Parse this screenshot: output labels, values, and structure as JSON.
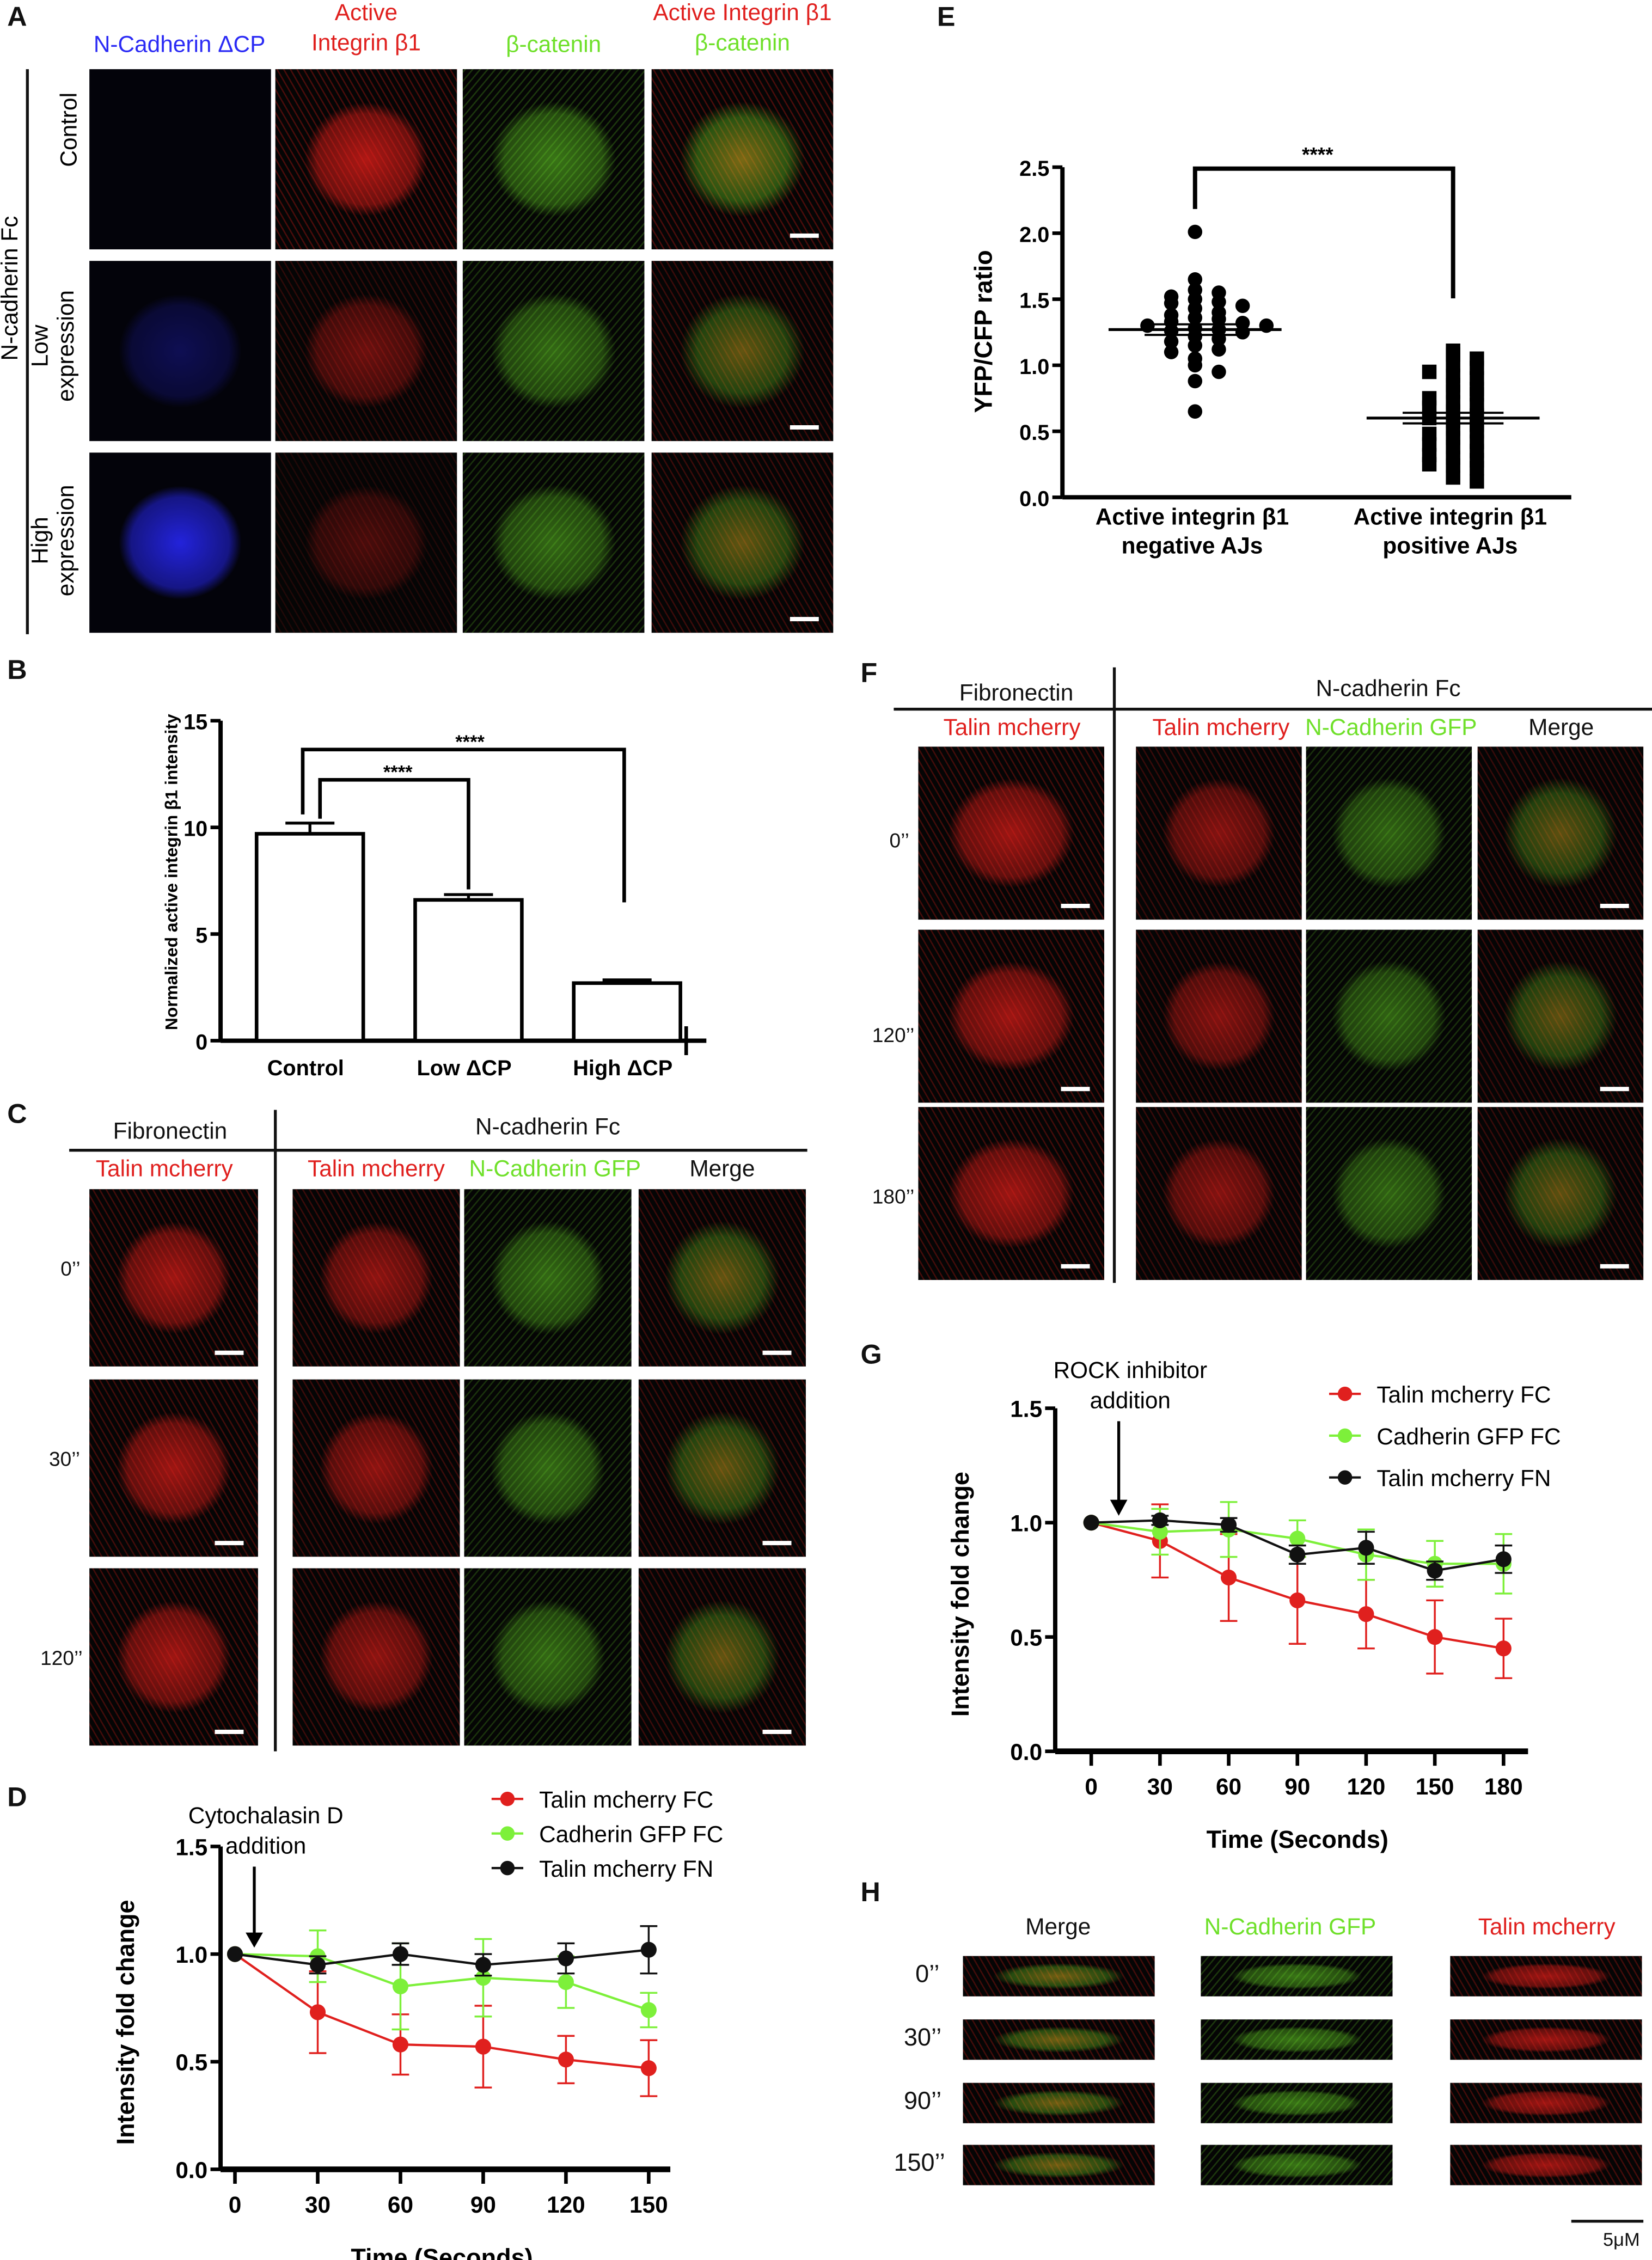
{
  "panel_labels": {
    "a": "A",
    "b": "B",
    "c": "C",
    "d": "D",
    "e": "E",
    "f": "F",
    "g": "G",
    "h": "H"
  },
  "panel_a": {
    "col_headers": [
      {
        "l1": "N-Cadherin ΔCP",
        "l2": "",
        "color": "#2b2bf5"
      },
      {
        "l1": "Active",
        "l2": "Integrin β1",
        "color": "#e0201e"
      },
      {
        "l1": "β-catenin",
        "l2": "",
        "color": "#6fe02a"
      },
      {
        "l1": "Active Integrin β1",
        "l2": "β-catenin"
      }
    ],
    "group_label": "N-cadherin Fc",
    "row_labels": [
      {
        "l1": "Control",
        "l2": ""
      },
      {
        "l1": "Low",
        "l2": "expression"
      },
      {
        "l1": "High",
        "l2": "expression"
      }
    ]
  },
  "panel_c": {
    "fn_header": "Fibronectin",
    "fc_header": "N-cadherin Fc",
    "sub_headers": {
      "fn": "Talin mcherry",
      "talin": "Talin mcherry",
      "cad": "N-Cadherin GFP",
      "merge": "Merge"
    },
    "times": [
      "0’’",
      "30’’",
      "120’’"
    ]
  },
  "panel_f": {
    "fn_header": "Fibronectin",
    "fc_header": "N-cadherin Fc",
    "sub_headers": {
      "fn": "Talin mcherry",
      "talin": "Talin mcherry",
      "cad": "N-Cadherin GFP",
      "merge": "Merge"
    },
    "times": [
      "0’’",
      "120’’",
      "180’’"
    ]
  },
  "panel_h": {
    "headers": {
      "merge": "Merge",
      "cad": "N-Cadherin GFP",
      "talin": "Talin mcherry"
    },
    "times": [
      "0’’",
      "30’’",
      "90’’",
      "150’’"
    ],
    "scale_bar": "5μM"
  },
  "colors": {
    "red": "#e0201e",
    "green": "#7df03a",
    "black": "#111111",
    "blue": "#2b2bf5"
  },
  "chart_data": [
    {
      "id": "B",
      "type": "bar",
      "ylabel": "Normalized active integrin β1 intensity",
      "ylim": [
        0,
        15
      ],
      "yticks": [
        "0",
        "5",
        "10",
        "15"
      ],
      "categories": [
        "Control",
        "Low ΔCP",
        "High ΔCP"
      ],
      "values": [
        9.7,
        6.6,
        2.7
      ],
      "errors": [
        0.5,
        0.25,
        0.15
      ],
      "significance": [
        {
          "from": "Control",
          "to": "Low ΔCP",
          "label": "****"
        },
        {
          "from": "Control",
          "to": "High ΔCP",
          "label": "****"
        }
      ]
    },
    {
      "id": "D",
      "type": "line",
      "xlabel": "Time (Seconds)",
      "ylabel": "Intensity fold change",
      "xlim": [
        0,
        150
      ],
      "ylim": [
        0,
        1.5
      ],
      "x": [
        0,
        30,
        60,
        90,
        120,
        150
      ],
      "xticks": [
        "0",
        "30",
        "60",
        "90",
        "120",
        "150"
      ],
      "yticks": [
        "0.0",
        "0.5",
        "1.0",
        "1.5"
      ],
      "annotation": {
        "l1": "Cytochalasin D",
        "l2": "addition",
        "x": 7
      },
      "legend": "top-right",
      "series": [
        {
          "name": "Talin mcherry FC",
          "color": "#e0201e",
          "values": [
            1,
            0.73,
            0.58,
            0.57,
            0.51,
            0.47
          ],
          "errors": [
            0,
            0.19,
            0.14,
            0.19,
            0.11,
            0.13
          ]
        },
        {
          "name": "Cadherin GFP FC",
          "color": "#7df03a",
          "values": [
            1,
            0.99,
            0.85,
            0.89,
            0.87,
            0.74
          ],
          "errors": [
            0,
            0.12,
            0.2,
            0.18,
            0.12,
            0.08
          ]
        },
        {
          "name": "Talin mcherry FN",
          "color": "#111111",
          "values": [
            1,
            0.95,
            1.0,
            0.95,
            0.98,
            1.02
          ],
          "errors": [
            0,
            0.04,
            0.05,
            0.05,
            0.07,
            0.11
          ]
        }
      ]
    },
    {
      "id": "E",
      "type": "scatter",
      "ylabel": "YFP/CFP ratio",
      "ylim": [
        0,
        2.5
      ],
      "yticks": [
        "0.0",
        "0.5",
        "1.0",
        "1.5",
        "2.0",
        "2.5"
      ],
      "categories": [
        {
          "l1": "Active integrin β1",
          "l2": "negative AJs"
        },
        {
          "l1": "Active integrin β1",
          "l2": "positive AJs"
        }
      ],
      "groups": [
        {
          "marker": "circle",
          "mean": 1.27,
          "sem": 0.04,
          "values": [
            2.01,
            1.65,
            1.57,
            1.55,
            1.52,
            1.5,
            1.48,
            1.47,
            1.45,
            1.43,
            1.4,
            1.38,
            1.36,
            1.35,
            1.33,
            1.32,
            1.3,
            1.3,
            1.28,
            1.27,
            1.26,
            1.25,
            1.22,
            1.2,
            1.18,
            1.15,
            1.12,
            1.1,
            1.05,
            1.0,
            0.95,
            0.88,
            0.65
          ]
        },
        {
          "marker": "square",
          "mean": 0.6,
          "sem": 0.04,
          "values": [
            1.11,
            1.08,
            1.05,
            1.0,
            0.98,
            0.95,
            0.92,
            0.9,
            0.85,
            0.82,
            0.8,
            0.78,
            0.75,
            0.72,
            0.7,
            0.68,
            0.65,
            0.62,
            0.6,
            0.58,
            0.55,
            0.52,
            0.5,
            0.48,
            0.45,
            0.42,
            0.4,
            0.38,
            0.35,
            0.32,
            0.3,
            0.28,
            0.25,
            0.24,
            0.22,
            0.15,
            0.12
          ]
        }
      ],
      "significance": {
        "label": "****"
      }
    },
    {
      "id": "G",
      "type": "line",
      "xlabel": "Time (Seconds)",
      "ylabel": "Intensity fold change",
      "xlim": [
        0,
        180
      ],
      "ylim": [
        0,
        1.5
      ],
      "x": [
        0,
        30,
        60,
        90,
        120,
        150,
        180
      ],
      "xticks": [
        "0",
        "30",
        "60",
        "90",
        "120",
        "150",
        "180"
      ],
      "yticks": [
        "0.0",
        "0.5",
        "1.0",
        "1.5"
      ],
      "annotation": {
        "l1": "ROCK inhibitor",
        "l2": "addition",
        "x": 12
      },
      "legend": "top-right",
      "series": [
        {
          "name": "Talin mcherry FC",
          "color": "#e0201e",
          "values": [
            1,
            0.92,
            0.76,
            0.66,
            0.6,
            0.5,
            0.45
          ],
          "errors": [
            0,
            0.16,
            0.19,
            0.19,
            0.15,
            0.16,
            0.13
          ]
        },
        {
          "name": "Cadherin GFP FC",
          "color": "#7df03a",
          "values": [
            1,
            0.96,
            0.97,
            0.93,
            0.86,
            0.82,
            0.82
          ],
          "errors": [
            0,
            0.1,
            0.12,
            0.08,
            0.11,
            0.1,
            0.13
          ]
        },
        {
          "name": "Talin mcherry FN",
          "color": "#111111",
          "values": [
            1,
            1.01,
            0.99,
            0.86,
            0.89,
            0.79,
            0.84
          ],
          "errors": [
            0,
            0.02,
            0.03,
            0.04,
            0.07,
            0.04,
            0.06
          ]
        }
      ]
    }
  ]
}
